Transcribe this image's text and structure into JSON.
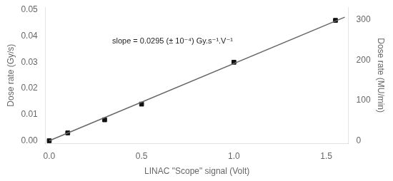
{
  "chart_data": {
    "type": "scatter",
    "xlabel": "LINAC \"Scope\" signal (Volt)",
    "ylabel": "Dose rate (Gy/s)",
    "y2label": "Dose rate (MU/min)",
    "annotation": "slope = 0.0295 (± 10⁻⁴) Gy.s⁻¹.V⁻¹",
    "xlim": [
      -0.02,
      1.62
    ],
    "ylim": [
      -0.001,
      0.051
    ],
    "y2lim": [
      -6.5,
      331
    ],
    "xticks": [
      {
        "value": 0.0,
        "label": "0.0"
      },
      0.5,
      {
        "value": 1.0,
        "label": "1.0"
      },
      1.5
    ],
    "yticks": [
      {
        "value": 0.0,
        "label": "0.00"
      },
      0.01,
      0.02,
      0.03,
      0.04,
      0.05
    ],
    "y2ticks": [
      0,
      100,
      200,
      300
    ],
    "grid": false,
    "series": [
      {
        "type": "line",
        "color": "#666666",
        "x": [
          0.0,
          1.6
        ],
        "values": [
          0.0,
          0.0472
        ]
      },
      {
        "type": "scatter",
        "marker": "square",
        "color": "#111111",
        "x": [
          0.0,
          0.1,
          0.3,
          0.5,
          1.0,
          1.55
        ],
        "values": [
          0.0,
          0.003,
          0.008,
          0.014,
          0.03,
          0.046
        ]
      }
    ]
  }
}
